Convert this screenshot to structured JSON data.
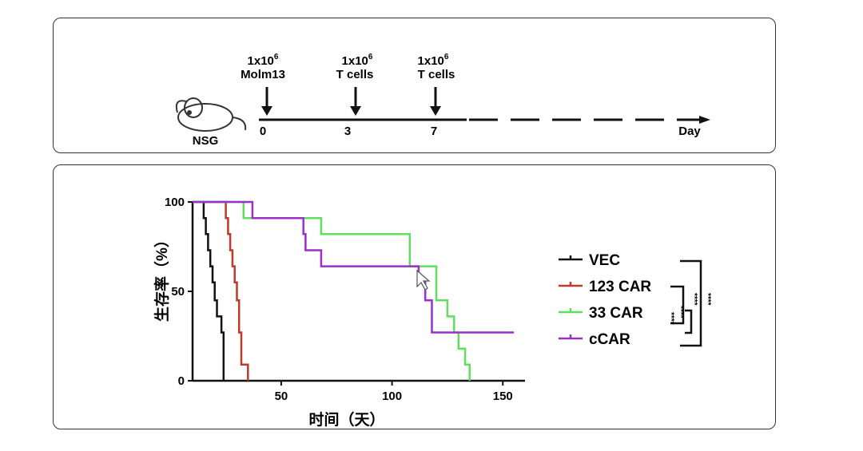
{
  "timeline": {
    "mouse_label": "NSG",
    "events": [
      {
        "dose": "1x10",
        "exp": "6",
        "what": "Molm13",
        "day": "0"
      },
      {
        "dose": "1x10",
        "exp": "6",
        "what": "T cells",
        "day": "3"
      },
      {
        "dose": "1x10",
        "exp": "6",
        "what": "T cells",
        "day": "7"
      }
    ],
    "axis_label": "Day"
  },
  "chart_data": {
    "type": "line",
    "subtype": "kaplan-meier step",
    "xlabel": "时间（天）",
    "ylabel": "生存率（%）",
    "xlim": [
      10,
      160
    ],
    "ylim": [
      0,
      100
    ],
    "xticks": [
      50,
      100,
      150
    ],
    "yticks": [
      0,
      50,
      100
    ],
    "xtick_labels": [
      "50",
      "100",
      "150"
    ],
    "ytick_labels": [
      "0",
      "50",
      "100"
    ],
    "series": [
      {
        "name": "VEC",
        "color": "#111111",
        "points": [
          [
            10,
            100
          ],
          [
            15,
            100
          ],
          [
            15,
            91
          ],
          [
            16,
            91
          ],
          [
            16,
            82
          ],
          [
            17,
            82
          ],
          [
            17,
            73
          ],
          [
            18,
            73
          ],
          [
            18,
            64
          ],
          [
            19,
            64
          ],
          [
            19,
            55
          ],
          [
            20,
            55
          ],
          [
            20,
            45
          ],
          [
            21,
            45
          ],
          [
            21,
            36
          ],
          [
            23,
            36
          ],
          [
            23,
            27
          ],
          [
            24,
            27
          ],
          [
            24,
            0
          ]
        ]
      },
      {
        "name": "123 CAR",
        "color": "#c0392b",
        "points": [
          [
            10,
            100
          ],
          [
            25,
            100
          ],
          [
            25,
            91
          ],
          [
            26,
            91
          ],
          [
            26,
            82
          ],
          [
            27,
            82
          ],
          [
            27,
            73
          ],
          [
            28,
            73
          ],
          [
            28,
            64
          ],
          [
            29,
            64
          ],
          [
            29,
            55
          ],
          [
            30,
            55
          ],
          [
            30,
            45
          ],
          [
            31,
            45
          ],
          [
            31,
            27
          ],
          [
            32,
            27
          ],
          [
            32,
            9
          ],
          [
            35,
            9
          ],
          [
            35,
            0
          ]
        ]
      },
      {
        "name": "33 CAR",
        "color": "#5ee05e",
        "points": [
          [
            10,
            100
          ],
          [
            33,
            100
          ],
          [
            33,
            91
          ],
          [
            68,
            91
          ],
          [
            68,
            82
          ],
          [
            108,
            82
          ],
          [
            108,
            64
          ],
          [
            120,
            64
          ],
          [
            120,
            45
          ],
          [
            125,
            45
          ],
          [
            125,
            36
          ],
          [
            128,
            36
          ],
          [
            128,
            27
          ],
          [
            130,
            27
          ],
          [
            130,
            18
          ],
          [
            133,
            18
          ],
          [
            133,
            9
          ],
          [
            135,
            9
          ],
          [
            135,
            0
          ]
        ]
      },
      {
        "name": "cCAR",
        "color": "#9b30c9",
        "points": [
          [
            10,
            100
          ],
          [
            37,
            100
          ],
          [
            37,
            91
          ],
          [
            60,
            91
          ],
          [
            60,
            82
          ],
          [
            61,
            82
          ],
          [
            61,
            73
          ],
          [
            68,
            73
          ],
          [
            68,
            64
          ],
          [
            112,
            64
          ],
          [
            112,
            55
          ],
          [
            115,
            55
          ],
          [
            115,
            45
          ],
          [
            118,
            45
          ],
          [
            118,
            27
          ],
          [
            155,
            27
          ]
        ]
      }
    ],
    "legend": [
      "VEC",
      "123 CAR",
      "33 CAR",
      "cCAR"
    ],
    "significance_marks": [
      "****",
      "****",
      "****",
      "****"
    ]
  }
}
